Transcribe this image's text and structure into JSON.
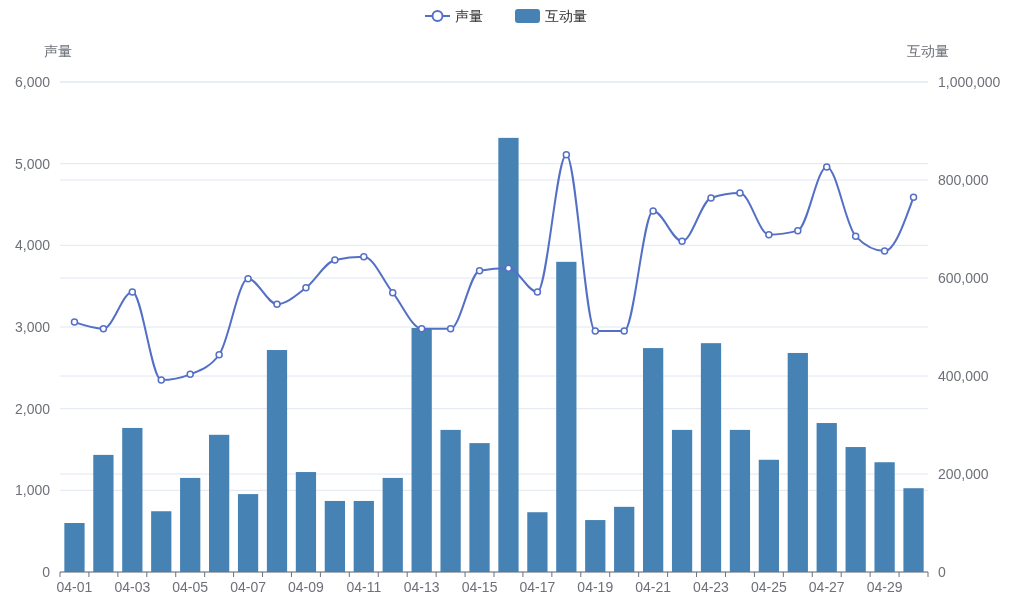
{
  "chart_data": {
    "type": "bar",
    "categories": [
      "04-01",
      null,
      "04-03",
      null,
      "04-05",
      null,
      "04-07",
      null,
      "04-09",
      null,
      "04-11",
      null,
      "04-13",
      null,
      "04-15",
      null,
      "04-17",
      null,
      "04-19",
      null,
      "04-21",
      null,
      "04-23",
      null,
      "04-25",
      null,
      "04-27",
      null,
      "04-29",
      null
    ],
    "ylabel": "声量",
    "y2label": "互动量",
    "ylim": [
      0,
      6000
    ],
    "yticks": [
      {
        "value": 0,
        "label": "0"
      },
      {
        "value": 1000,
        "label": "1,000"
      },
      {
        "value": 2000,
        "label": "2,000"
      },
      {
        "value": 3000,
        "label": "3,000"
      },
      {
        "value": 4000,
        "label": "4,000"
      },
      {
        "value": 5000,
        "label": "5,000"
      },
      {
        "value": 6000,
        "label": "6,000"
      }
    ],
    "y2lim": [
      0,
      1000000
    ],
    "y2ticks": [
      {
        "value": 0,
        "label": "0"
      },
      {
        "value": 200000,
        "label": "200,000"
      },
      {
        "value": 400000,
        "label": "400,000"
      },
      {
        "value": 600000,
        "label": "600,000"
      },
      {
        "value": 800000,
        "label": "800,000"
      },
      {
        "value": 1000000,
        "label": "1,000,000"
      }
    ],
    "grid": true,
    "legend": "top",
    "marker": "circle",
    "line_style": "solid",
    "series": [
      {
        "name": "声量",
        "type": "line",
        "color": "#5470c6",
        "values": [
          3060,
          2980,
          3430,
          2350,
          2420,
          2660,
          3590,
          3280,
          3480,
          3820,
          3860,
          3420,
          2980,
          2980,
          3690,
          3720,
          3430,
          5110,
          2950,
          2950,
          4420,
          4050,
          4580,
          4640,
          4130,
          4180,
          4960,
          4110,
          3930,
          4590
        ]
      },
      {
        "name": "互动量",
        "axis": "y2",
        "color": "#4682b4",
        "values": [
          100000,
          239000,
          294000,
          124000,
          192000,
          280000,
          159000,
          453000,
          204000,
          145000,
          145000,
          192000,
          498000,
          290000,
          263000,
          886000,
          122000,
          633000,
          106000,
          133000,
          457000,
          290000,
          467000,
          290000,
          229000,
          447000,
          304000,
          255000,
          224000,
          171000
        ]
      }
    ]
  }
}
